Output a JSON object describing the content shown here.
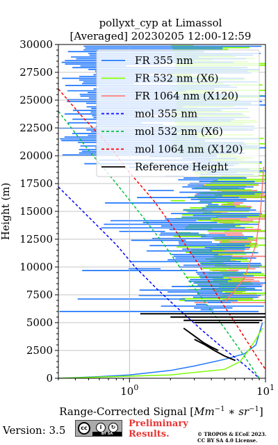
{
  "chart_data": {
    "type": "line",
    "title": "pollyxt_cyp at Limassol",
    "subtitle": "[Averaged] 20230205 12:00-12:59",
    "xlabel_main": "Range-Corrected Signal [",
    "xlabel_unit": "Mm",
    "xlabel_unit_exp": "−1",
    "xlabel_unit_mid": " ∗ sr",
    "xlabel_unit_exp2": "−1",
    "xlabel_end": "]",
    "ylabel": "Height (m)",
    "xscale": "log",
    "xlim": [
      0.3,
      10
    ],
    "ylim": [
      0,
      30000
    ],
    "grid": true,
    "legend_position": "top-right",
    "x_tick_labels": [
      {
        "base": "10",
        "exp": "0",
        "value": 1
      },
      {
        "base": "10",
        "exp": "1",
        "value": 10
      }
    ],
    "y_ticks": [
      0,
      2500,
      5000,
      7500,
      10000,
      12500,
      15000,
      17500,
      20000,
      22500,
      25000,
      27500,
      30000
    ],
    "series": [
      {
        "name": "FR 355 nm",
        "color": "#1f77ff",
        "style": "solid",
        "x": [
          0.3,
          0.6,
          1.0,
          2.0,
          3.0,
          5.0,
          7.0,
          8.5,
          9.5
        ],
        "y": [
          0,
          150,
          300,
          700,
          1100,
          1700,
          2200,
          3000,
          5000
        ]
      },
      {
        "name": "FR 532 nm (X6)",
        "color": "#7cfc00",
        "style": "solid",
        "x": [
          0.3,
          2.0,
          5.0,
          6.5,
          7.5,
          8.5,
          9.5
        ],
        "y": [
          0,
          300,
          800,
          1500,
          2500,
          3500,
          4500
        ]
      },
      {
        "name": "FR 1064 nm (X120)",
        "color": "#f87878",
        "style": "solid",
        "x": [
          5.0,
          7.0,
          8.5,
          9.2,
          9.7
        ],
        "y": [
          6800,
          9000,
          12000,
          15000,
          19000
        ]
      },
      {
        "name": "mol 355 nm",
        "color": "#0000ff",
        "style": "dashed",
        "x": [
          0.3,
          0.5,
          0.8,
          1.1,
          1.6,
          2.4,
          3.5,
          5.0,
          7.0,
          9.0
        ],
        "y": [
          17200,
          14500,
          12000,
          10000,
          8000,
          6000,
          4200,
          2600,
          1200,
          0
        ]
      },
      {
        "name": "mol 532 nm (X6)",
        "color": "#00c040",
        "style": "dashed",
        "x": [
          0.3,
          0.5,
          0.8,
          1.2,
          1.8,
          2.6,
          3.6,
          5.0,
          6.8,
          9.0
        ],
        "y": [
          24000,
          20500,
          17500,
          14800,
          12000,
          9200,
          6800,
          4500,
          2200,
          0
        ]
      },
      {
        "name": "mol 1064 nm (X120)",
        "color": "#ff0000",
        "style": "dashed",
        "x": [
          0.3,
          0.45,
          0.7,
          1.0,
          1.5,
          2.2,
          3.2,
          4.5,
          6.5,
          9.0,
          10.0
        ],
        "y": [
          26000,
          23500,
          21000,
          18500,
          16000,
          13200,
          10300,
          7300,
          4300,
          1600,
          800
        ]
      },
      {
        "name": "Reference Height",
        "color": "#000000",
        "style": "solid",
        "segments": [
          {
            "x": [
              1.2,
              10.0
            ],
            "y": [
              5800,
              5800
            ]
          },
          {
            "x": [
              2.0,
              10.0
            ],
            "y": [
              5500,
              5500
            ]
          },
          {
            "x": [
              2.5,
              9.5
            ],
            "y": [
              5200,
              5200
            ]
          },
          {
            "x": [
              3.0,
              9.0
            ],
            "y": [
              5000,
              5000
            ]
          },
          {
            "x": [
              2.5,
              3.0,
              3.5,
              4.0,
              4.5
            ],
            "y": [
              4500,
              3800,
              3200,
              2800,
              2500
            ]
          },
          {
            "x": [
              3.0,
              3.6,
              4.2,
              5.0,
              6.0
            ],
            "y": [
              3500,
              3000,
              2500,
              2000,
              1600
            ]
          }
        ]
      }
    ]
  },
  "footer": {
    "version": "Version: 3.5",
    "license_badge": {
      "cc": "cc",
      "by": "i",
      "sa": "↻",
      "strip": "BY  SA"
    },
    "preliminary_line1": "Preliminary",
    "preliminary_line2": "Results.",
    "copyright_line1": "© TROPOS & ECoE 2023.",
    "copyright_line2": "CC BY SA 4.0 License."
  }
}
